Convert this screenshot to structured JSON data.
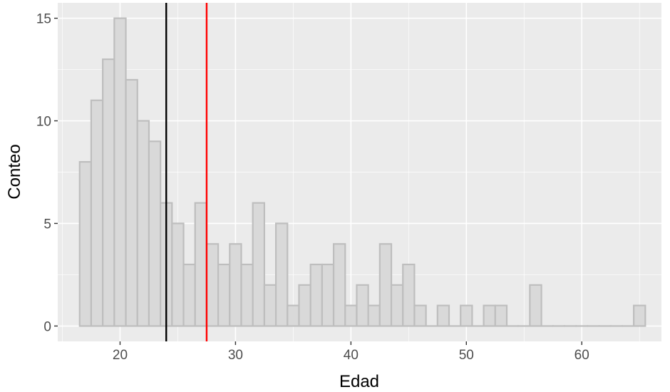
{
  "chart_data": {
    "type": "bar",
    "xlabel": "Edad",
    "ylabel": "Conteo",
    "xlim": [
      14.6,
      66.9
    ],
    "ylim": [
      -0.75,
      15.75
    ],
    "bin_width": 1,
    "bin_start": 16.5,
    "counts": [
      8,
      11,
      13,
      15,
      12,
      10,
      9,
      6,
      5,
      3,
      6,
      4,
      3,
      4,
      3,
      6,
      2,
      5,
      1,
      2,
      3,
      3,
      4,
      1,
      2,
      1,
      4,
      2,
      3,
      1,
      0,
      1,
      0,
      1,
      0,
      1,
      1,
      0,
      0,
      2,
      0,
      0,
      0,
      0,
      0,
      0,
      0,
      0,
      1
    ],
    "x_ticks": [
      20,
      30,
      40,
      50,
      60
    ],
    "y_ticks": [
      0,
      5,
      10,
      15
    ],
    "vlines": [
      {
        "x": 24,
        "color": "#000000"
      },
      {
        "x": 27.5,
        "color": "#ff0000"
      }
    ],
    "colors": {
      "panel": "#ebebeb",
      "grid": "#ffffff",
      "bar_fill": "#d9d9d9",
      "bar_stroke": "#bebebe",
      "tick_text": "#4d4d4d",
      "tick_mark": "#333333"
    },
    "grid": true
  }
}
